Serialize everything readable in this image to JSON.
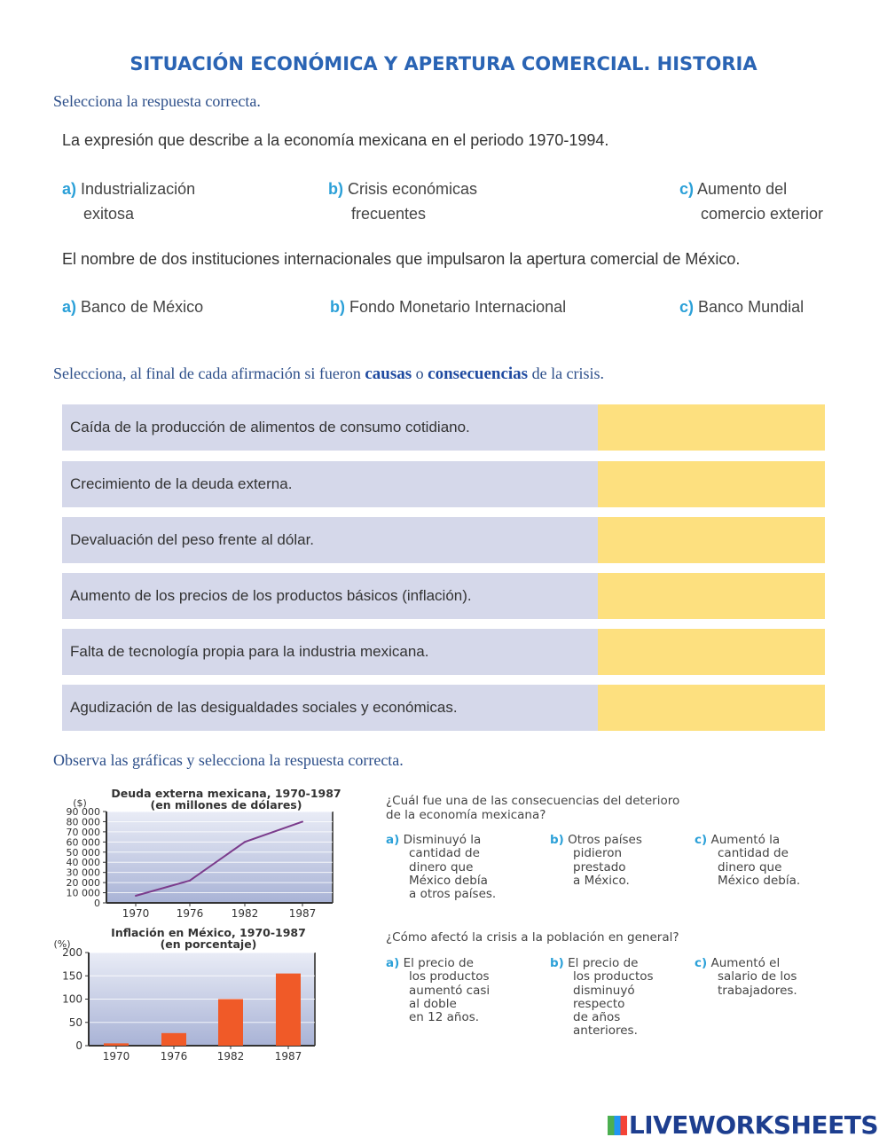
{
  "title": "SITUACIÓN ECONÓMICA Y APERTURA COMERCIAL.  HISTORIA",
  "section1": {
    "instruction": "Selecciona la respuesta correcta.",
    "questions": [
      {
        "text": "La expresión que describe a la economía mexicana en el periodo 1970-1994.",
        "options": [
          {
            "letter": "a)",
            "line1": "Industrialización",
            "line2": "exitosa"
          },
          {
            "letter": "b)",
            "line1": "Crisis económicas",
            "line2": "frecuentes"
          },
          {
            "letter": "c)",
            "line1": "Aumento del",
            "line2": "comercio exterior"
          }
        ]
      },
      {
        "text": "El nombre de dos instituciones internacionales que impulsaron la apertura comercial de México.",
        "options": [
          {
            "letter": "a)",
            "line1": "Banco de México"
          },
          {
            "letter": "b)",
            "line1": "Fondo Monetario Internacional"
          },
          {
            "letter": "c)",
            "line1": "Banco Mundial"
          }
        ]
      }
    ]
  },
  "section2": {
    "instruction_pre": "Selecciona, al final de cada afirmación si fueron ",
    "causas": "causas",
    "o": " o ",
    "consecuencias": "consecuencias",
    "instruction_post": " de la crisis.",
    "rows": [
      "Caída de la producción de alimentos de consumo cotidiano.",
      "Crecimiento de la deuda externa.",
      "Devaluación del peso frente al dólar.",
      "Aumento de los precios de los productos básicos (inflación).",
      "Falta de tecnología propia para la industria mexicana.",
      "Agudización de las desigualdades sociales y económicas."
    ],
    "answer_color": "#fde07f",
    "row_color": "#d5d8ea"
  },
  "section3": {
    "instruction": "Observa las gráficas y selecciona la respuesta correcta.",
    "q1": {
      "text1": "¿Cuál fue una de las consecuencias del deterioro",
      "text2": "de la economía mexicana?",
      "options": [
        {
          "letter": "a)",
          "lines": [
            "Disminuyó la",
            "cantidad de",
            "dinero que",
            "México debía",
            "a otros países."
          ]
        },
        {
          "letter": "b)",
          "lines": [
            "Otros países",
            "pidieron",
            "prestado",
            "a México."
          ]
        },
        {
          "letter": "c)",
          "lines": [
            "Aumentó la",
            "cantidad de",
            "dinero que",
            "México debía."
          ]
        }
      ]
    },
    "q2": {
      "text": "¿Cómo afectó la crisis a la población en general?",
      "options": [
        {
          "letter": "a)",
          "lines": [
            "El precio de",
            "los productos",
            "aumentó casi",
            "al doble",
            "en 12 años."
          ]
        },
        {
          "letter": "b)",
          "lines": [
            "El precio de",
            "los productos",
            "disminuyó",
            "respecto",
            "de años",
            "anteriores."
          ]
        },
        {
          "letter": "c)",
          "lines": [
            "Aumentó el",
            "salario de los",
            "trabajadores."
          ]
        }
      ]
    }
  },
  "chart_data": [
    {
      "type": "line",
      "title": "Deuda externa mexicana, 1970-1987",
      "subtitle": "(en millones de dólares)",
      "ylabel": "($)",
      "categories": [
        "1970",
        "1976",
        "1982",
        "1987"
      ],
      "values": [
        7000,
        22000,
        60000,
        80000
      ],
      "ylim": [
        0,
        90000
      ],
      "yticks": [
        "0",
        "10 000",
        "20 000",
        "30 000",
        "40 000",
        "50 000",
        "60 000",
        "70 000",
        "80 000",
        "90 000"
      ],
      "grid": true,
      "line_color": "#7b3c8c"
    },
    {
      "type": "bar",
      "title": "Inflación en México, 1970-1987",
      "subtitle": "(en porcentaje)",
      "ylabel": "(%)",
      "categories": [
        "1970",
        "1976",
        "1982",
        "1987"
      ],
      "values": [
        5,
        27,
        100,
        155
      ],
      "ylim": [
        0,
        200
      ],
      "yticks": [
        "0",
        "50",
        "100",
        "150",
        "200"
      ],
      "grid": true,
      "bar_color": "#f05a28"
    }
  ],
  "logo": "LIVEWORKSHEETS"
}
